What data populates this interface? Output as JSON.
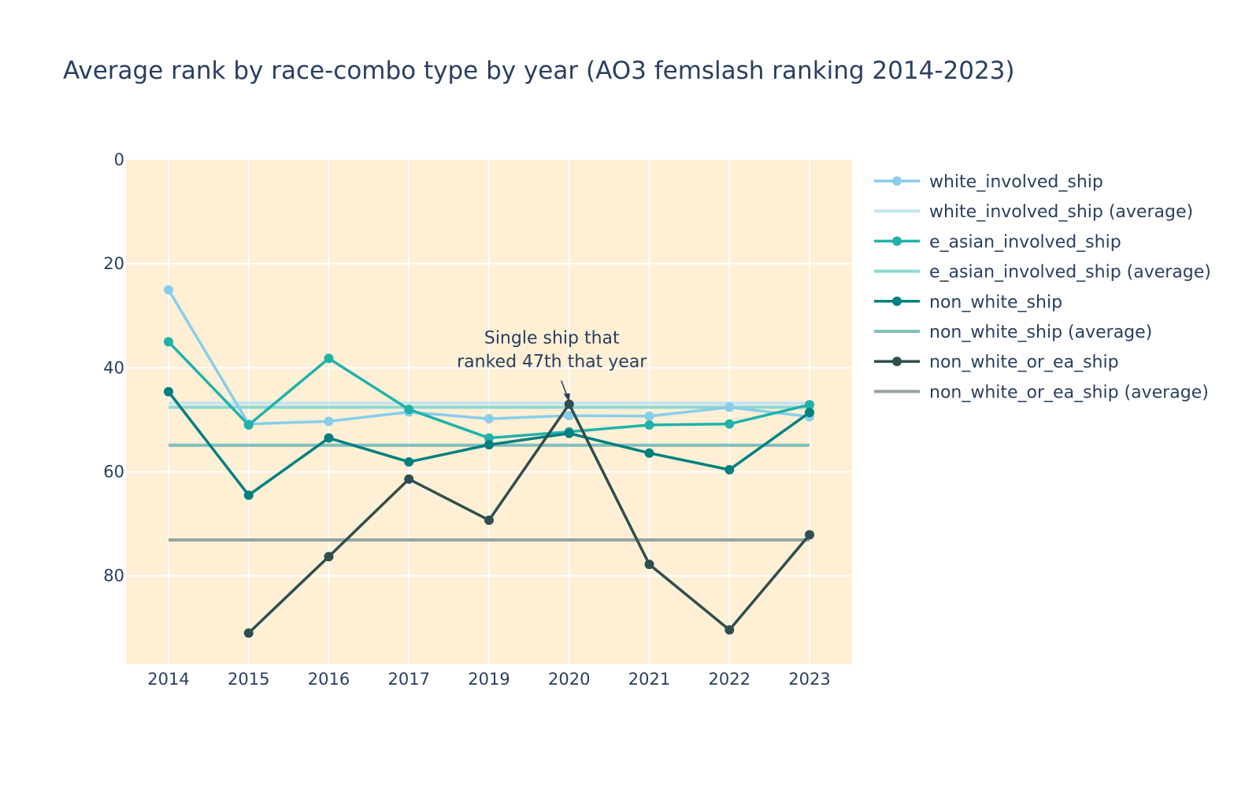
{
  "chart_data": {
    "type": "line",
    "title": "Average rank by race-combo type by year (AO3 femslash ranking 2014-2023)",
    "xlabel": "",
    "ylabel": "",
    "categories": [
      "2014",
      "2015",
      "2016",
      "2017",
      "2019",
      "2020",
      "2021",
      "2022",
      "2023"
    ],
    "y_ticks": [
      "0",
      "20",
      "40",
      "60",
      "80"
    ],
    "ylim": [
      97,
      0
    ],
    "y_reversed": true,
    "grid": true,
    "plot_background": "#FFEFD5",
    "legend_position": "right",
    "series": [
      {
        "name": "white_involved_ship",
        "kind": "line",
        "color": "#87CEEB",
        "values": [
          25,
          50.8,
          50.3,
          48.5,
          49.8,
          49.2,
          49.3,
          47.6,
          49.4
        ]
      },
      {
        "name": "white_involved_ship (average)",
        "kind": "average",
        "color": "#C3E4F2",
        "values": [
          46.8,
          46.8,
          46.8,
          46.8,
          46.8,
          46.8,
          46.8,
          46.8,
          46.8
        ]
      },
      {
        "name": "e_asian_involved_ship",
        "kind": "line",
        "color": "#20B2AA",
        "values": [
          35,
          51,
          38.2,
          48,
          53.5,
          52.3,
          51,
          50.8,
          47.1
        ]
      },
      {
        "name": "e_asian_involved_ship (average)",
        "kind": "average",
        "color": "#8FD8D2",
        "values": [
          47.6,
          47.6,
          47.6,
          47.6,
          47.6,
          47.6,
          47.6,
          47.6,
          47.6
        ]
      },
      {
        "name": "non_white_ship",
        "kind": "line",
        "color": "#008080",
        "values": [
          44.6,
          64.5,
          53.5,
          58.1,
          54.8,
          52.6,
          56.4,
          59.6,
          48.6
        ]
      },
      {
        "name": "non_white_ship (average)",
        "kind": "average",
        "color": "#7FBFBB",
        "values": [
          54.9,
          54.9,
          54.9,
          54.9,
          54.9,
          54.9,
          54.9,
          54.9,
          54.9
        ]
      },
      {
        "name": "non_white_or_ea_ship",
        "kind": "line",
        "color": "#2F4F4F",
        "values": [
          null,
          91,
          76.3,
          61.4,
          69.3,
          47,
          77.8,
          90.4,
          72.1
        ]
      },
      {
        "name": "non_white_or_ea_ship (average)",
        "kind": "average",
        "color": "#93A39F",
        "values": [
          73.1,
          73.1,
          73.1,
          73.1,
          73.1,
          73.1,
          73.1,
          73.1,
          73.1
        ]
      }
    ],
    "annotations": [
      {
        "lines": [
          "Single ship that",
          "ranked 47th that year"
        ],
        "x": "2020",
        "y": 47
      }
    ]
  }
}
